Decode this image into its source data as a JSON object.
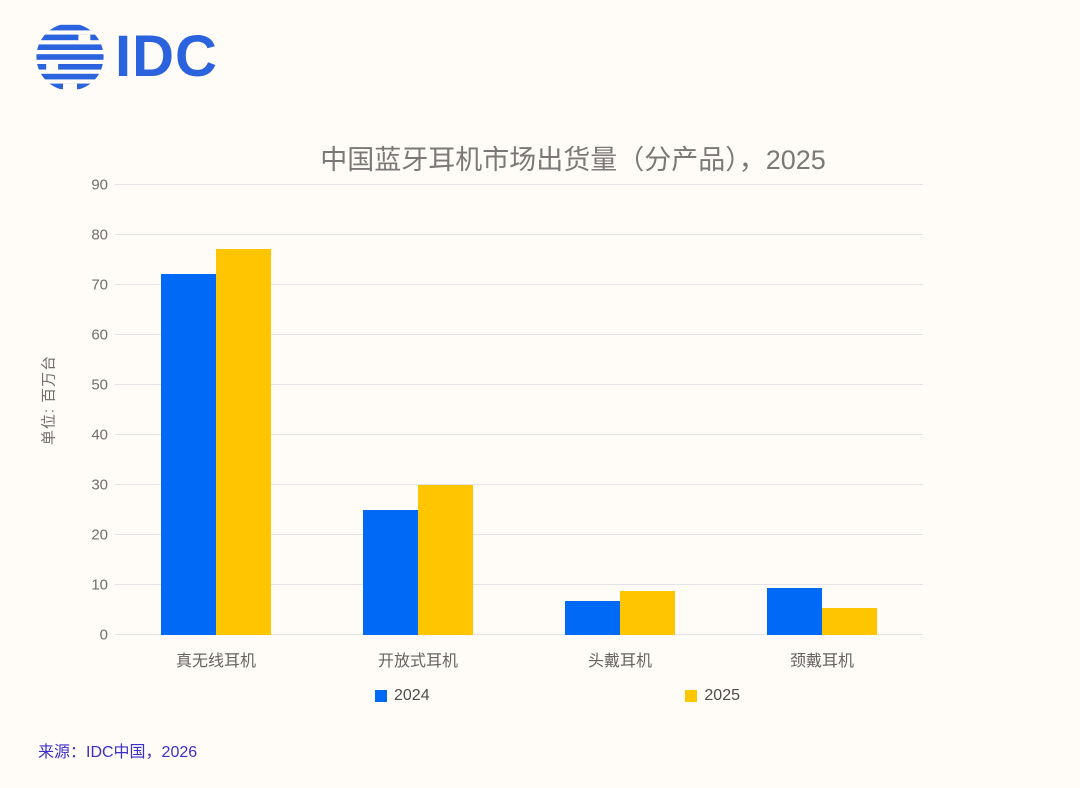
{
  "page": {
    "background_color": "#fffbf7"
  },
  "logo": {
    "text": "IDC",
    "color": "#2a63dd",
    "globe_icon": "striped-globe"
  },
  "chart_data": {
    "type": "bar",
    "title": "中国蓝牙耳机市场出货量（分产品），2025",
    "xlabel": "",
    "ylabel": "单位: 百万台",
    "categories": [
      "真无线耳机",
      "开放式耳机",
      "头戴耳机",
      "颈戴耳机"
    ],
    "series": [
      {
        "name": "2024",
        "color": "#0069f5",
        "values": [
          72.3,
          25,
          6.9,
          9.5
        ]
      },
      {
        "name": "2025",
        "color": "#ffc600",
        "values": [
          77.3,
          30,
          8.8,
          5.4
        ]
      }
    ],
    "ylim": [
      0,
      90
    ],
    "ytick_step": 10,
    "grid": true,
    "gridline_color": "#e5e3e5",
    "legend_position": "bottom"
  },
  "source": {
    "text": "来源：IDC中国，2026",
    "color": "#3b2fc9"
  }
}
